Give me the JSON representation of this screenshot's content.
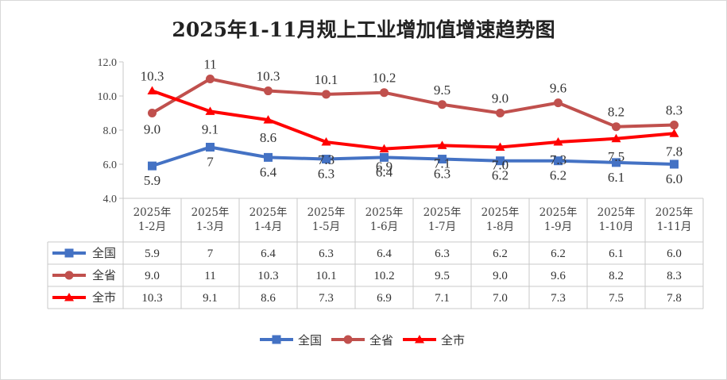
{
  "chart_data": {
    "type": "line",
    "title": "2025年1-11月规上工业增加值增速趋势图",
    "categories": [
      [
        "2025年",
        "1-2月"
      ],
      [
        "2025年",
        "1-3月"
      ],
      [
        "2025年",
        "1-4月"
      ],
      [
        "2025年",
        "1-5月"
      ],
      [
        "2025年",
        "1-6月"
      ],
      [
        "2025年",
        "1-7月"
      ],
      [
        "2025年",
        "1-8月"
      ],
      [
        "2025年",
        "1-9月"
      ],
      [
        "2025年",
        "1-10月"
      ],
      [
        "2025年",
        "1-11月"
      ]
    ],
    "series": [
      {
        "name": "全国",
        "color": "#4472c4",
        "marker": "square",
        "values": [
          5.9,
          7,
          6.4,
          6.3,
          6.4,
          6.3,
          6.2,
          6.2,
          6.1,
          6.0
        ],
        "labels": [
          "5.9",
          "7",
          "6.4",
          "6.3",
          "6.4",
          "6.3",
          "6.2",
          "6.2",
          "6.1",
          "6.0"
        ]
      },
      {
        "name": "全省",
        "color": "#c0504d",
        "marker": "circle",
        "values": [
          9.0,
          11,
          10.3,
          10.1,
          10.2,
          9.5,
          9.0,
          9.6,
          8.2,
          8.3
        ],
        "labels": [
          "9.0",
          "11",
          "10.3",
          "10.1",
          "10.2",
          "9.5",
          "9.0",
          "9.6",
          "8.2",
          "8.3"
        ]
      },
      {
        "name": "全市",
        "color": "#ff0000",
        "marker": "triangle",
        "values": [
          10.3,
          9.1,
          8.6,
          7.3,
          6.9,
          7.1,
          7.0,
          7.3,
          7.5,
          7.8
        ],
        "labels": [
          "10.3",
          "9.1",
          "8.6",
          "7.3",
          "6.9",
          "7.1",
          "7.0",
          "7.3",
          "7.5",
          "7.8"
        ]
      }
    ],
    "yticks": [
      "4.0",
      "6.0",
      "8.0",
      "10.0",
      "12.0"
    ],
    "ylim": [
      4,
      12
    ],
    "grid": false,
    "legend": "bottom",
    "data_table": true
  }
}
